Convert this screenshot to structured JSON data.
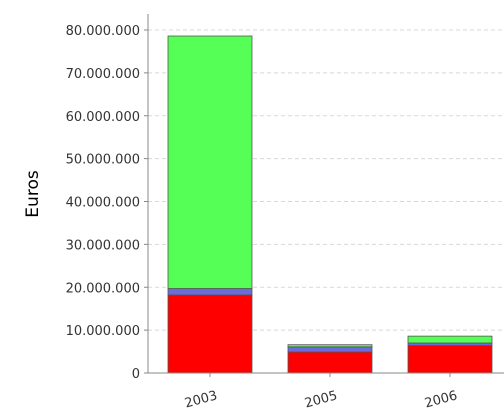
{
  "chart_data": {
    "type": "bar",
    "stacked": true,
    "title": "",
    "xlabel": "",
    "ylabel": "Euros",
    "ylim": [
      0,
      80000000
    ],
    "yticks": [
      "0",
      "10.000.000",
      "20.000.000",
      "30.000.000",
      "40.000.000",
      "50.000.000",
      "60.000.000",
      "70.000.000",
      "80.000.000"
    ],
    "ytick_values": [
      0,
      10000000,
      20000000,
      30000000,
      40000000,
      50000000,
      60000000,
      70000000,
      80000000
    ],
    "categories": [
      "2003",
      "2005",
      "2006"
    ],
    "series": [
      {
        "color": "#ff0000",
        "values": [
          18200000,
          4900000,
          6400000
        ]
      },
      {
        "color": "#6b6bdc",
        "values": [
          1500000,
          1200000,
          600000
        ]
      },
      {
        "color": "#55ff55",
        "values": [
          58900000,
          500000,
          1600000
        ]
      }
    ],
    "grid": true,
    "legend": "none"
  }
}
